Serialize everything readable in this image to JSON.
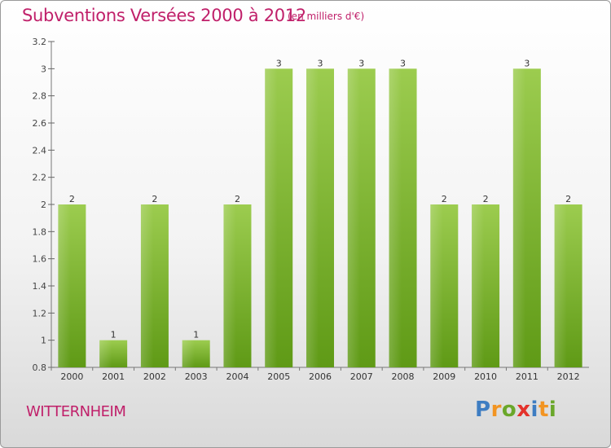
{
  "header": {
    "title": "Subventions Versées 2000 à 2012",
    "subtitle": "(en milliers d'€)"
  },
  "footer": {
    "place": "WITTERNHEIM",
    "brand": [
      "P",
      "r",
      "o",
      "x",
      "i",
      "t",
      "i"
    ]
  },
  "colors": {
    "title": "#c0206a",
    "bar_top": "#9ccc4f",
    "bar_bottom": "#5f9a16",
    "brand": [
      "#3e7dc2",
      "#f29422",
      "#6aa72a",
      "#e4322b",
      "#3e7dc2",
      "#f29422",
      "#6aa72a"
    ]
  },
  "chart_data": {
    "type": "bar",
    "categories": [
      "2000",
      "2001",
      "2002",
      "2003",
      "2004",
      "2005",
      "2006",
      "2007",
      "2008",
      "2009",
      "2010",
      "2011",
      "2012"
    ],
    "values": [
      2,
      1,
      2,
      1,
      2,
      3,
      3,
      3,
      3,
      2,
      2,
      3,
      2
    ],
    "data_labels": [
      "2",
      "1",
      "2",
      "1",
      "2",
      "3",
      "3",
      "3",
      "3",
      "2",
      "2",
      "3",
      "2"
    ],
    "y_ticks": [
      0.8,
      1,
      1.2,
      1.4,
      1.6,
      1.8,
      2,
      2.2,
      2.4,
      2.6,
      2.8,
      3,
      3.2
    ],
    "y_tick_labels": [
      "0.8",
      "1",
      "1.2",
      "1.4",
      "1.6",
      "1.8",
      "2",
      "2.2",
      "2.4",
      "2.6",
      "2.8",
      "3",
      "3.2"
    ],
    "ylim": [
      0.8,
      3.2
    ],
    "grid": false
  }
}
